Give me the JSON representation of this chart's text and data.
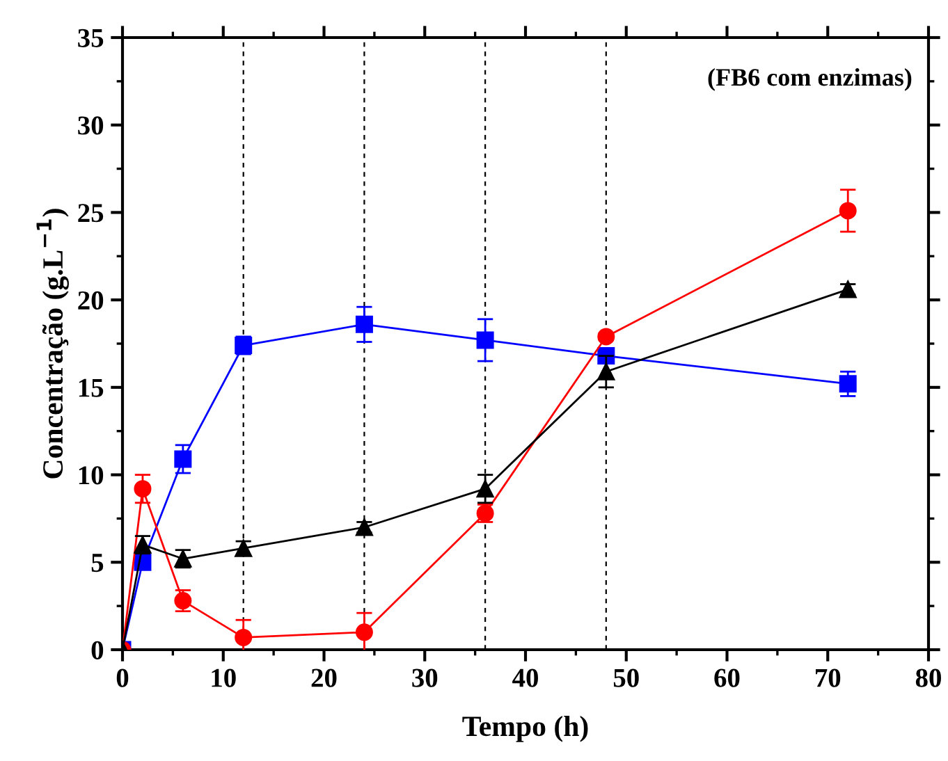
{
  "chart_data": {
    "type": "line",
    "xlabel": "Tempo (h)",
    "ylabel": "Concentração (g.L$^{−1}$)",
    "annotations": [
      "(FB6 com enzimas)"
    ],
    "x": [
      0,
      2,
      6,
      12,
      24,
      36,
      48,
      72
    ],
    "series": [
      {
        "color": "#0000ff",
        "marker": "square",
        "values": [
          0,
          5.0,
          10.9,
          17.4,
          18.6,
          17.7,
          16.8,
          15.2
        ],
        "errors": [
          null,
          0.3,
          0.8,
          0.5,
          1.0,
          1.2,
          0.3,
          0.7
        ]
      },
      {
        "color": "#ff0000",
        "marker": "circle",
        "values": [
          0,
          9.2,
          2.8,
          0.7,
          1.0,
          7.8,
          17.9,
          25.1
        ],
        "errors": [
          null,
          0.8,
          0.6,
          1.0,
          1.1,
          0.5,
          0.2,
          1.2
        ]
      },
      {
        "color": "#000000",
        "marker": "triangle",
        "values": [
          0,
          6.0,
          5.2,
          5.8,
          7.0,
          9.2,
          15.9,
          20.6
        ],
        "errors": [
          null,
          0.5,
          0.5,
          0.4,
          0.3,
          0.8,
          0.9,
          0.3
        ]
      }
    ],
    "xlim": [
      0,
      80
    ],
    "xticks": [
      0,
      10,
      20,
      30,
      40,
      50,
      60,
      70,
      80
    ],
    "ylim": [
      0,
      35
    ],
    "yticks": [
      0,
      5,
      10,
      15,
      20,
      25,
      30,
      35
    ],
    "ref_lines": [
      {
        "axis": "x",
        "value": 12,
        "color": "#000000",
        "line_style": "dashed"
      },
      {
        "axis": "x",
        "value": 24,
        "color": "#000000",
        "line_style": "dashed"
      },
      {
        "axis": "x",
        "value": 36,
        "color": "#000000",
        "line_style": "dashed"
      },
      {
        "axis": "x",
        "value": 48,
        "color": "#000000",
        "line_style": "dashed"
      }
    ],
    "grid": false,
    "legend": false
  }
}
